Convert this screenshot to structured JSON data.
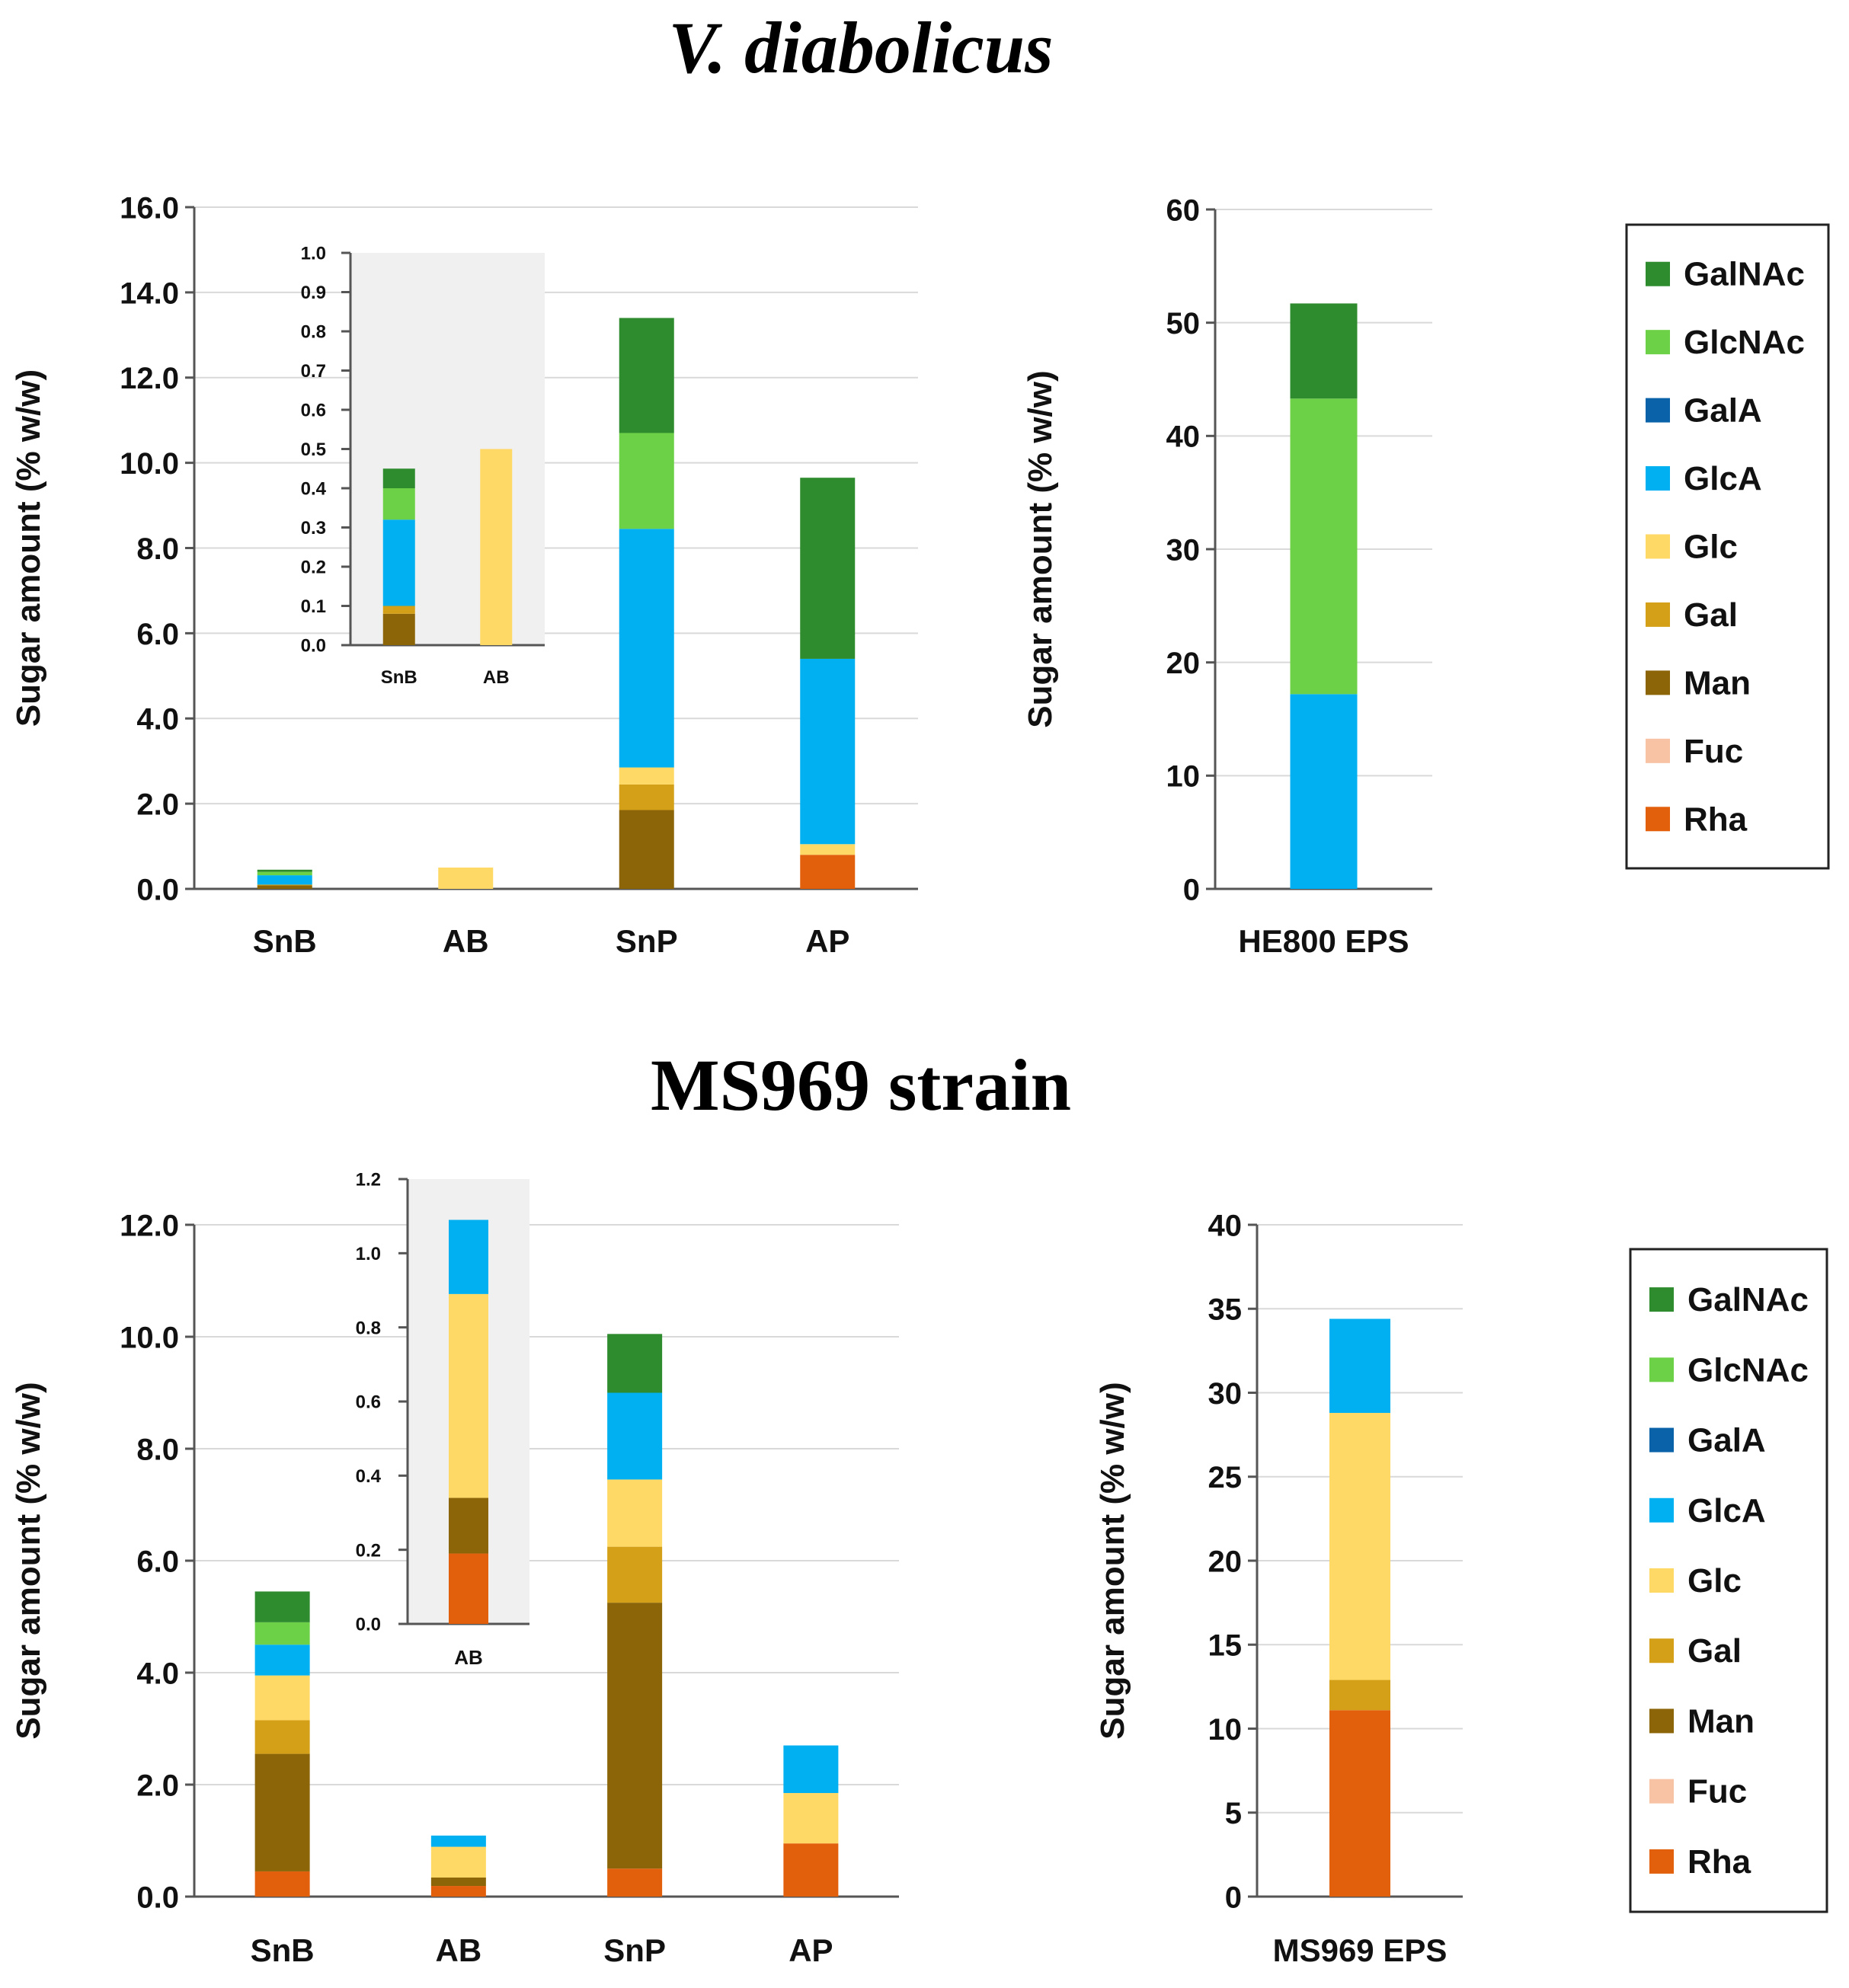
{
  "titles": {
    "top": "V. diabolicus",
    "bottom": "MS969 strain"
  },
  "colors": {
    "GalNAc": "#2e8b2e",
    "GlcNAc": "#6cd146",
    "GalA": "#0a63a8",
    "GlcA": "#00b0f0",
    "Glc": "#ffd966",
    "Gal": "#d4a017",
    "Man": "#8b6508",
    "Fuc": "#f8c3a5",
    "Rha": "#e2600c"
  },
  "chart_data": [
    {
      "id": "vd-main",
      "type": "bar",
      "stacked": true,
      "categories": [
        "SnB",
        "AB",
        "SnP",
        "AP"
      ],
      "ylabel": "Sugar amount (% w/w)",
      "ylim": [
        0,
        16
      ],
      "yticks": [
        "0.0",
        "2.0",
        "4.0",
        "6.0",
        "8.0",
        "10.0",
        "12.0",
        "14.0",
        "16.0"
      ],
      "grid": true,
      "series": [
        {
          "name": "Rha",
          "values": [
            0,
            0,
            0,
            0.8
          ]
        },
        {
          "name": "Fuc",
          "values": [
            0,
            0,
            0,
            0
          ]
        },
        {
          "name": "Man",
          "values": [
            0.08,
            0,
            1.85,
            0
          ]
        },
        {
          "name": "Gal",
          "values": [
            0.02,
            0,
            0.6,
            0
          ]
        },
        {
          "name": "Glc",
          "values": [
            0,
            0.5,
            0.4,
            0.25
          ]
        },
        {
          "name": "GlcA",
          "values": [
            0.22,
            0,
            5.6,
            4.35
          ]
        },
        {
          "name": "GalA",
          "values": [
            0,
            0,
            0,
            0
          ]
        },
        {
          "name": "GlcNAc",
          "values": [
            0.08,
            0,
            2.25,
            0
          ]
        },
        {
          "name": "GalNAc",
          "values": [
            0.05,
            0,
            2.7,
            4.25
          ]
        }
      ]
    },
    {
      "id": "vd-inset",
      "type": "bar",
      "stacked": true,
      "inset": true,
      "categories": [
        "SnB",
        "AB"
      ],
      "ylim": [
        0,
        1.0
      ],
      "yticks": [
        "0.0",
        "0.1",
        "0.2",
        "0.3",
        "0.4",
        "0.5",
        "0.6",
        "0.7",
        "0.8",
        "0.9",
        "1.0"
      ],
      "series": [
        {
          "name": "Man",
          "values": [
            0.08,
            0
          ]
        },
        {
          "name": "Gal",
          "values": [
            0.02,
            0
          ]
        },
        {
          "name": "Glc",
          "values": [
            0,
            0.5
          ]
        },
        {
          "name": "GlcA",
          "values": [
            0.22,
            0
          ]
        },
        {
          "name": "GlcNAc",
          "values": [
            0.08,
            0
          ]
        },
        {
          "name": "GalNAc",
          "values": [
            0.05,
            0
          ]
        }
      ]
    },
    {
      "id": "vd-eps",
      "type": "bar",
      "stacked": true,
      "categories": [
        "HE800 EPS"
      ],
      "ylabel": "Sugar amount (% w/w)",
      "ylim": [
        0,
        60
      ],
      "yticks": [
        "0",
        "10",
        "20",
        "30",
        "40",
        "50",
        "60"
      ],
      "grid": true,
      "series": [
        {
          "name": "GlcA",
          "values": [
            17.2
          ]
        },
        {
          "name": "GlcNAc",
          "values": [
            26.1
          ]
        },
        {
          "name": "GalNAc",
          "values": [
            8.4
          ]
        }
      ]
    },
    {
      "id": "ms-main",
      "type": "bar",
      "stacked": true,
      "categories": [
        "SnB",
        "AB",
        "SnP",
        "AP"
      ],
      "ylabel": "Sugar amount (% w/w)",
      "ylim": [
        0,
        12
      ],
      "yticks": [
        "0.0",
        "2.0",
        "4.0",
        "6.0",
        "8.0",
        "10.0",
        "12.0"
      ],
      "grid": true,
      "series": [
        {
          "name": "Rha",
          "values": [
            0.45,
            0.19,
            0.5,
            0.95
          ]
        },
        {
          "name": "Fuc",
          "values": [
            0,
            0,
            0,
            0
          ]
        },
        {
          "name": "Man",
          "values": [
            2.1,
            0.15,
            4.75,
            0
          ]
        },
        {
          "name": "Gal",
          "values": [
            0.6,
            0,
            1.0,
            0
          ]
        },
        {
          "name": "Glc",
          "values": [
            0.8,
            0.55,
            1.2,
            0.9
          ]
        },
        {
          "name": "GlcA",
          "values": [
            0.55,
            0.2,
            1.55,
            0.85
          ]
        },
        {
          "name": "GalA",
          "values": [
            0,
            0,
            0,
            0
          ]
        },
        {
          "name": "GlcNAc",
          "values": [
            0.4,
            0,
            0,
            0
          ]
        },
        {
          "name": "GalNAc",
          "values": [
            0.55,
            0,
            1.05,
            0
          ]
        }
      ]
    },
    {
      "id": "ms-inset",
      "type": "bar",
      "stacked": true,
      "inset": true,
      "categories": [
        "AB"
      ],
      "ylim": [
        0,
        1.2
      ],
      "yticks": [
        "0.0",
        "0.2",
        "0.4",
        "0.6",
        "0.8",
        "1.0",
        "1.2"
      ],
      "series": [
        {
          "name": "Rha",
          "values": [
            0.19
          ]
        },
        {
          "name": "Man",
          "values": [
            0.15
          ]
        },
        {
          "name": "Glc",
          "values": [
            0.55
          ]
        },
        {
          "name": "GlcA",
          "values": [
            0.2
          ]
        }
      ]
    },
    {
      "id": "ms-eps",
      "type": "bar",
      "stacked": true,
      "categories": [
        "MS969 EPS"
      ],
      "ylabel": "Sugar amount (% w/w)",
      "ylim": [
        0,
        40
      ],
      "yticks": [
        "0",
        "5",
        "10",
        "15",
        "20",
        "25",
        "30",
        "35",
        "40"
      ],
      "grid": true,
      "series": [
        {
          "name": "Rha",
          "values": [
            11.1
          ]
        },
        {
          "name": "Gal",
          "values": [
            1.8
          ]
        },
        {
          "name": "Glc",
          "values": [
            15.9
          ]
        },
        {
          "name": "GlcA",
          "values": [
            5.6
          ]
        }
      ]
    }
  ],
  "legend": {
    "placement": "right",
    "entries": [
      "GalNAc",
      "GlcNAc",
      "GalA",
      "GlcA",
      "Glc",
      "Gal",
      "Man",
      "Fuc",
      "Rha"
    ]
  }
}
